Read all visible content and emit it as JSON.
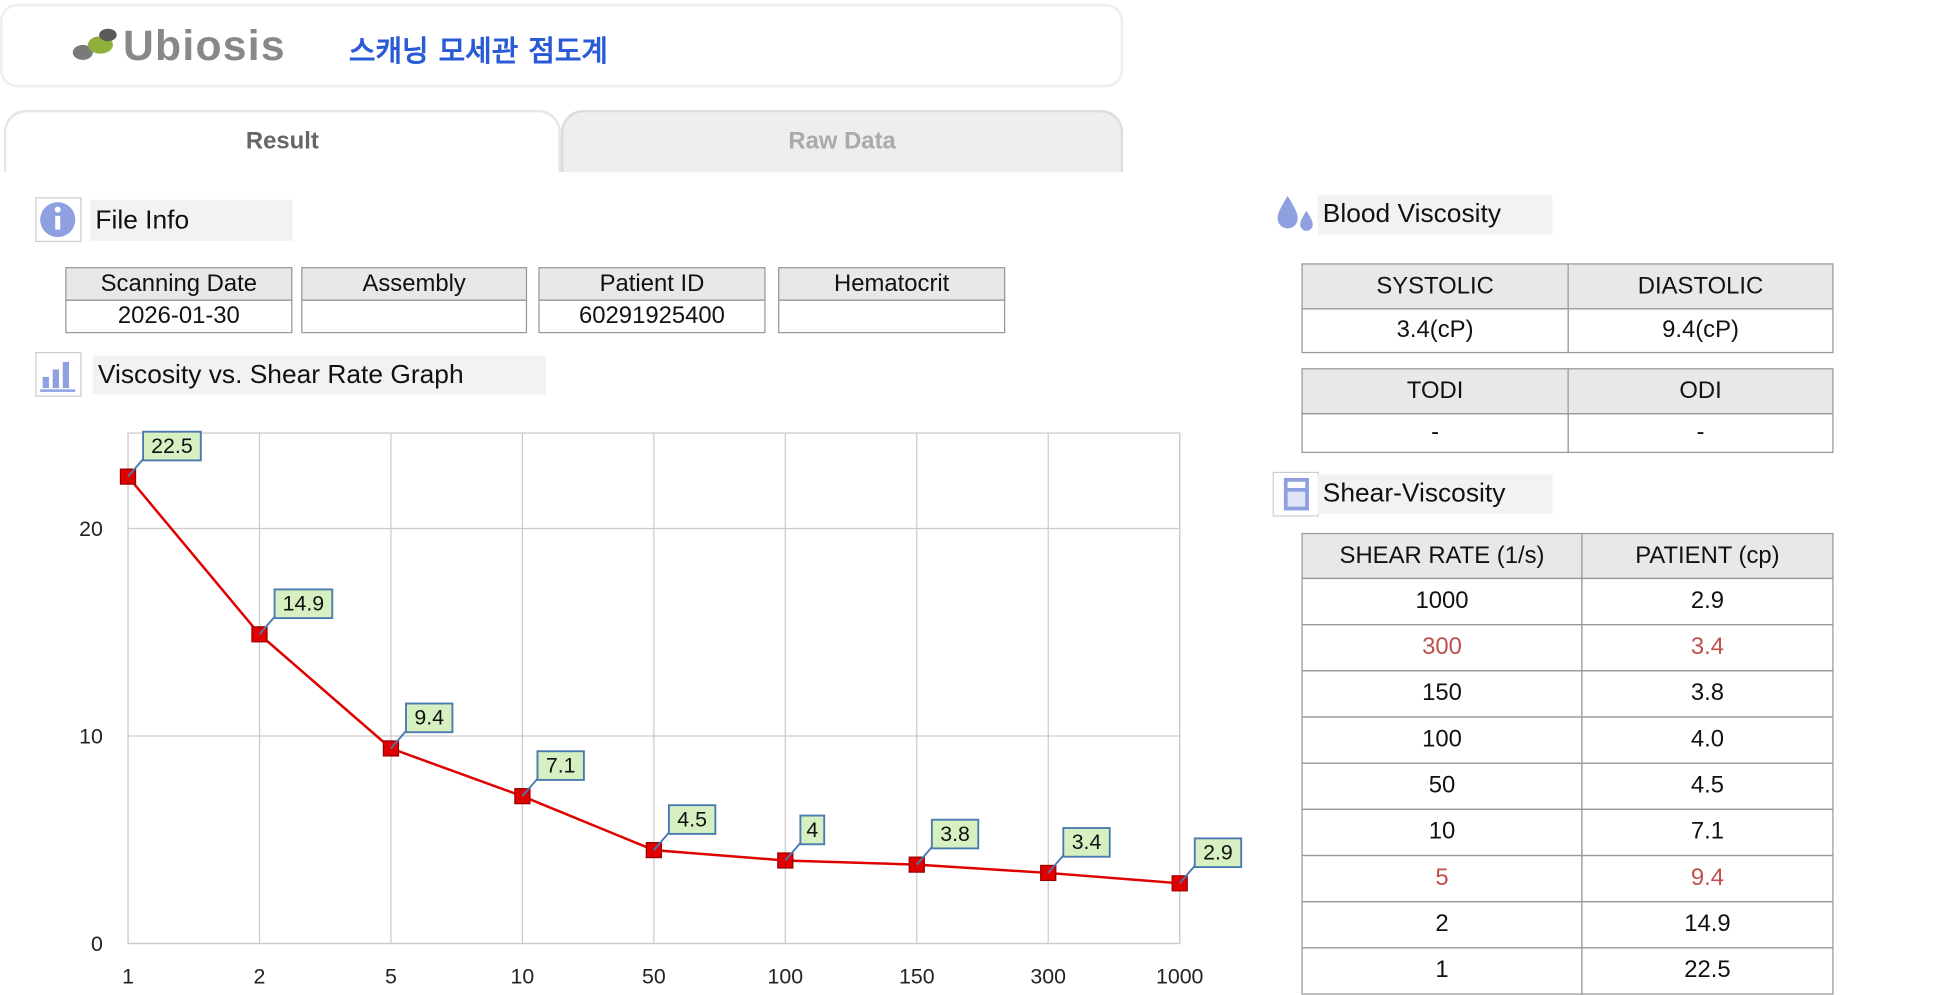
{
  "header": {
    "brand": "Ubiosis",
    "title": "스캐닝 모세관 점도계"
  },
  "tabs": [
    "Result",
    "Raw Data"
  ],
  "file_info": {
    "label": "File Info",
    "headers": [
      "Scanning Date",
      "Assembly",
      "Patient ID",
      "Hematocrit"
    ],
    "values": [
      "2026-01-30",
      null,
      "60291925400",
      null
    ]
  },
  "graph_label": "Viscosity vs. Shear Rate Graph",
  "chart_data": {
    "type": "line",
    "categories": [
      "1",
      "2",
      "5",
      "10",
      "50",
      "100",
      "150",
      "300",
      "1000"
    ],
    "values": [
      22.5,
      14.9,
      9.4,
      7.1,
      4.5,
      4,
      3.8,
      3.4,
      2.9
    ],
    "color": "#e00000",
    "ylim": [
      0,
      24.6
    ],
    "yticks": [
      0,
      10,
      20
    ],
    "grid": true
  },
  "blood_viscosity": {
    "label": "Blood Viscosity",
    "headers": [
      "SYSTOLIC",
      "DIASTOLIC"
    ],
    "values": [
      "3.4(cP)",
      "9.4(cP)"
    ],
    "headers2": [
      "TODI",
      "ODI"
    ],
    "values2": [
      "-",
      "-"
    ]
  },
  "shear_viscosity": {
    "label": "Shear-Viscosity",
    "headers": [
      "SHEAR RATE (1/s)",
      "PATIENT (cp)"
    ],
    "rows": [
      [
        "1000",
        "2.9"
      ],
      [
        "300",
        "3.4"
      ],
      [
        "150",
        "3.8"
      ],
      [
        "100",
        "4.0"
      ],
      [
        "50",
        "4.5"
      ],
      [
        "10",
        "7.1"
      ],
      [
        "5",
        "9.4"
      ],
      [
        "2",
        "14.9"
      ],
      [
        "1",
        "22.5"
      ]
    ],
    "highlight": {
      "rows": [
        1,
        6
      ],
      "color": "#c0504d"
    }
  }
}
